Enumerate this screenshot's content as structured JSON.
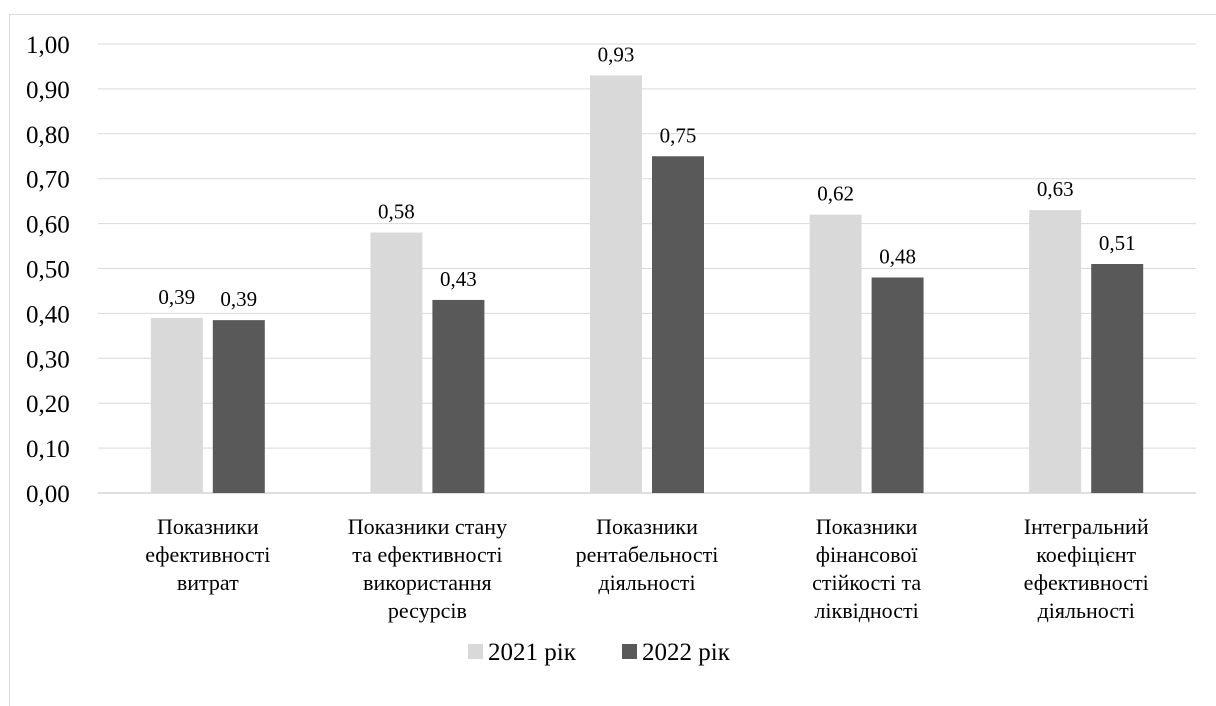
{
  "chart_data": {
    "type": "bar",
    "title": "",
    "xlabel": "",
    "ylabel": "",
    "ylim": [
      0,
      1.0
    ],
    "y_ticks": [
      "0,00",
      "0,10",
      "0,20",
      "0,30",
      "0,40",
      "0,50",
      "0,60",
      "0,70",
      "0,80",
      "0,90",
      "1,00"
    ],
    "grid": true,
    "legend_position": "bottom",
    "categories": [
      [
        "Показники",
        "ефективності",
        "витрат"
      ],
      [
        "Показники стану",
        "та ефективності",
        "використання",
        "ресурсів"
      ],
      [
        "Показники",
        "рентабельності",
        "діяльності"
      ],
      [
        "Показники",
        "фінансової",
        "стійкості та",
        "ліквідності"
      ],
      [
        "Інтегральний",
        "коефіцієнт",
        "ефективності",
        "діяльності"
      ]
    ],
    "series": [
      {
        "name": "2021 рік",
        "color": "#d9d9d9",
        "values": [
          0.39,
          0.58,
          0.93,
          0.62,
          0.63
        ],
        "labels": [
          "0,39",
          "0,58",
          "0,93",
          "0,62",
          "0,63"
        ]
      },
      {
        "name": "2022 рік",
        "color": "#595959",
        "values": [
          0.385,
          0.43,
          0.75,
          0.48,
          0.51
        ],
        "labels": [
          "0,39",
          "0,43",
          "0,75",
          "0,48",
          "0,51"
        ]
      }
    ]
  }
}
